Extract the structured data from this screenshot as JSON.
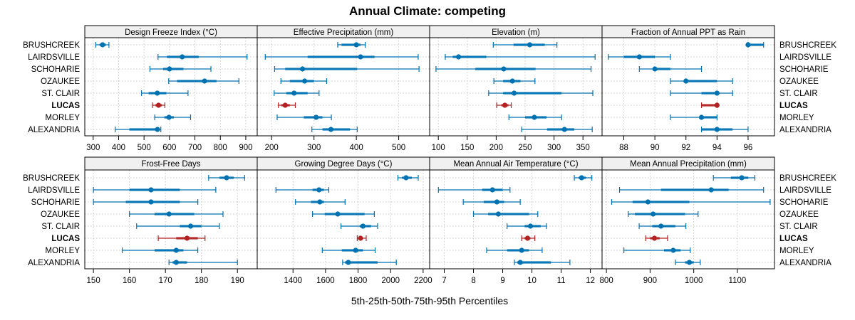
{
  "chart_data": {
    "type": "dotplot-percentiles",
    "title": "Annual Climate: competing",
    "xlabel": "5th-25th-50th-75th-95th Percentiles",
    "ylabel": "",
    "grid": true,
    "layout": {
      "rows": 2,
      "cols": 4
    },
    "categories": [
      "BRUSHCREEK",
      "LAIRDSVILLE",
      "SCHOHARIE",
      "OZAUKEE",
      "ST. CLAIR",
      "LUCAS",
      "MORLEY",
      "ALEXANDRIA"
    ],
    "highlight": "LUCAS",
    "colors": {
      "default": "#0072B2",
      "highlight": "#B22222",
      "strip": "#F0F0F0",
      "grid": "#C8C8C8"
    },
    "panels": [
      {
        "title": "Design Freeze Index (°C)",
        "xlim": [
          267,
          945
        ],
        "ticks": [
          300,
          400,
          500,
          600,
          700,
          800,
          900
        ],
        "values": {
          "BRUSHCREEK": [
            310,
            325,
            337,
            350,
            362
          ],
          "LAIRDSVILLE": [
            555,
            590,
            650,
            715,
            905
          ],
          "SCHOHARIE": [
            523,
            575,
            600,
            655,
            763
          ],
          "OZAUKEE": [
            597,
            630,
            738,
            785,
            873
          ],
          "ST. CLAIR": [
            490,
            518,
            552,
            588,
            673
          ],
          "LUCAS": [
            533,
            545,
            557,
            570,
            582
          ],
          "MORLEY": [
            542,
            580,
            598,
            617,
            683
          ],
          "ALEXANDRIA": [
            387,
            442,
            553,
            560,
            566
          ]
        }
      },
      {
        "title": "Effective Precipitation (mm)",
        "xlim": [
          166,
          573
        ],
        "ticks": [
          200,
          300,
          400,
          500
        ],
        "values": {
          "BRUSHCREEK": [
            356,
            365,
            400,
            410,
            421
          ],
          "LAIRDSVILLE": [
            185,
            285,
            410,
            443,
            546
          ],
          "SCHOHARIE": [
            207,
            232,
            273,
            402,
            548
          ],
          "OZAUKEE": [
            222,
            243,
            278,
            300,
            330
          ],
          "ST. CLAIR": [
            206,
            235,
            253,
            285,
            312
          ],
          "LUCAS": [
            216,
            223,
            232,
            243,
            256
          ],
          "MORLEY": [
            213,
            276,
            305,
            320,
            341
          ],
          "ALEXANDRIA": [
            295,
            320,
            340,
            385,
            402
          ]
        }
      },
      {
        "title": "Elevation (m)",
        "xlim": [
          85,
          383
        ],
        "ticks": [
          100,
          150,
          200,
          250,
          300,
          350
        ],
        "values": {
          "BRUSHCREEK": [
            195,
            230,
            258,
            284,
            305
          ],
          "LAIRDSVILLE": [
            112,
            125,
            135,
            183,
            371
          ],
          "SCHOHARIE": [
            96,
            164,
            213,
            268,
            364
          ],
          "OZAUKEE": [
            196,
            212,
            228,
            242,
            267
          ],
          "ST. CLAIR": [
            187,
            212,
            231,
            313,
            367
          ],
          "LUCAS": [
            201,
            209,
            215,
            221,
            226
          ],
          "MORLEY": [
            222,
            250,
            266,
            287,
            313
          ],
          "ALEXANDRIA": [
            244,
            288,
            318,
            335,
            366
          ]
        }
      },
      {
        "title": "Fraction of Annual PPT as Rain",
        "xlim": [
          86.6,
          97.7
        ],
        "ticks": [
          88,
          90,
          92,
          94,
          96
        ],
        "values": {
          "BRUSHCREEK": [
            96,
            96,
            96,
            97,
            97
          ],
          "LAIRDSVILLE": [
            87,
            88,
            89,
            90,
            91
          ],
          "SCHOHARIE": [
            89,
            90,
            90,
            91,
            93
          ],
          "OZAUKEE": [
            91,
            92,
            92,
            94,
            95
          ],
          "ST. CLAIR": [
            91,
            93,
            94,
            94,
            95
          ],
          "LUCAS": [
            93,
            93,
            94,
            94,
            94
          ],
          "MORLEY": [
            91,
            93,
            93,
            94,
            94
          ],
          "ALEXANDRIA": [
            93,
            93,
            94,
            95,
            96
          ]
        }
      },
      {
        "title": "Frost-Free Days",
        "xlim": [
          147.6,
          195.5
        ],
        "ticks": [
          150,
          160,
          170,
          180,
          190
        ],
        "values": {
          "BRUSHCREEK": [
            182,
            185,
            187,
            189,
            192
          ],
          "LAIRDSVILLE": [
            150,
            160,
            166,
            174,
            184
          ],
          "SCHOHARIE": [
            150,
            159,
            166,
            174,
            179
          ],
          "OZAUKEE": [
            160,
            167,
            171,
            178,
            186
          ],
          "ST. CLAIR": [
            162,
            174,
            177,
            180,
            185
          ],
          "LUCAS": [
            168,
            173,
            176,
            179,
            181
          ],
          "MORLEY": [
            158,
            167,
            173,
            175,
            179
          ],
          "ALEXANDRIA": [
            171,
            172,
            173,
            176,
            190
          ]
        }
      },
      {
        "title": "Growing Degree Days (°C)",
        "xlim": [
          1180,
          2240
        ],
        "ticks": [
          1400,
          1600,
          1800,
          2000,
          2200
        ],
        "values": {
          "BRUSHCREEK": [
            2045,
            2070,
            2095,
            2130,
            2170
          ],
          "LAIRDSVILLE": [
            1295,
            1520,
            1560,
            1590,
            1620
          ],
          "SCHOHARIE": [
            1415,
            1510,
            1565,
            1590,
            1720
          ],
          "OZAUKEE": [
            1520,
            1595,
            1675,
            1840,
            1900
          ],
          "ST. CLAIR": [
            1695,
            1810,
            1830,
            1880,
            1920
          ],
          "LUCAS": [
            1795,
            1805,
            1815,
            1830,
            1850
          ],
          "MORLEY": [
            1580,
            1700,
            1785,
            1830,
            1905
          ],
          "ALEXANDRIA": [
            1705,
            1720,
            1740,
            1920,
            2035
          ]
        }
      },
      {
        "title": "Mean Annual Air Temperature (°C)",
        "xlim": [
          6.5,
          12.4
        ],
        "ticks": [
          7,
          8,
          9,
          10,
          11,
          12
        ],
        "values": {
          "BRUSHCREEK": [
            11.45,
            11.6,
            11.7,
            11.85,
            12.05
          ],
          "LAIRDSVILLE": [
            6.8,
            8.3,
            8.65,
            9.0,
            9.25
          ],
          "SCHOHARIE": [
            7.65,
            8.35,
            8.8,
            9.05,
            9.6
          ],
          "OZAUKEE": [
            8.0,
            8.5,
            8.85,
            9.9,
            10.2
          ],
          "ST. CLAIR": [
            9.15,
            9.75,
            9.95,
            10.3,
            10.5
          ],
          "LUCAS": [
            9.65,
            9.75,
            9.85,
            9.95,
            10.1
          ],
          "MORLEY": [
            8.45,
            9.15,
            9.65,
            9.9,
            10.35
          ],
          "ALEXANDRIA": [
            9.4,
            9.5,
            9.6,
            10.65,
            11.3
          ]
        }
      },
      {
        "title": "Mean Annual Precipitation (mm)",
        "xlim": [
          790,
          1185
        ],
        "ticks": [
          800,
          900,
          1000,
          1100
        ],
        "values": {
          "BRUSHCREEK": [
            1045,
            1085,
            1110,
            1125,
            1140
          ],
          "LAIRDSVILLE": [
            830,
            925,
            1040,
            1080,
            1160
          ],
          "SCHOHARIE": [
            812,
            860,
            895,
            990,
            1175
          ],
          "OZAUKEE": [
            850,
            865,
            907,
            980,
            1010
          ],
          "ST. CLAIR": [
            875,
            905,
            925,
            958,
            982
          ],
          "LUCAS": [
            890,
            900,
            910,
            922,
            940
          ],
          "MORLEY": [
            840,
            932,
            953,
            970,
            992
          ],
          "ALEXANDRIA": [
            958,
            980,
            990,
            1000,
            1015
          ]
        }
      }
    ]
  }
}
